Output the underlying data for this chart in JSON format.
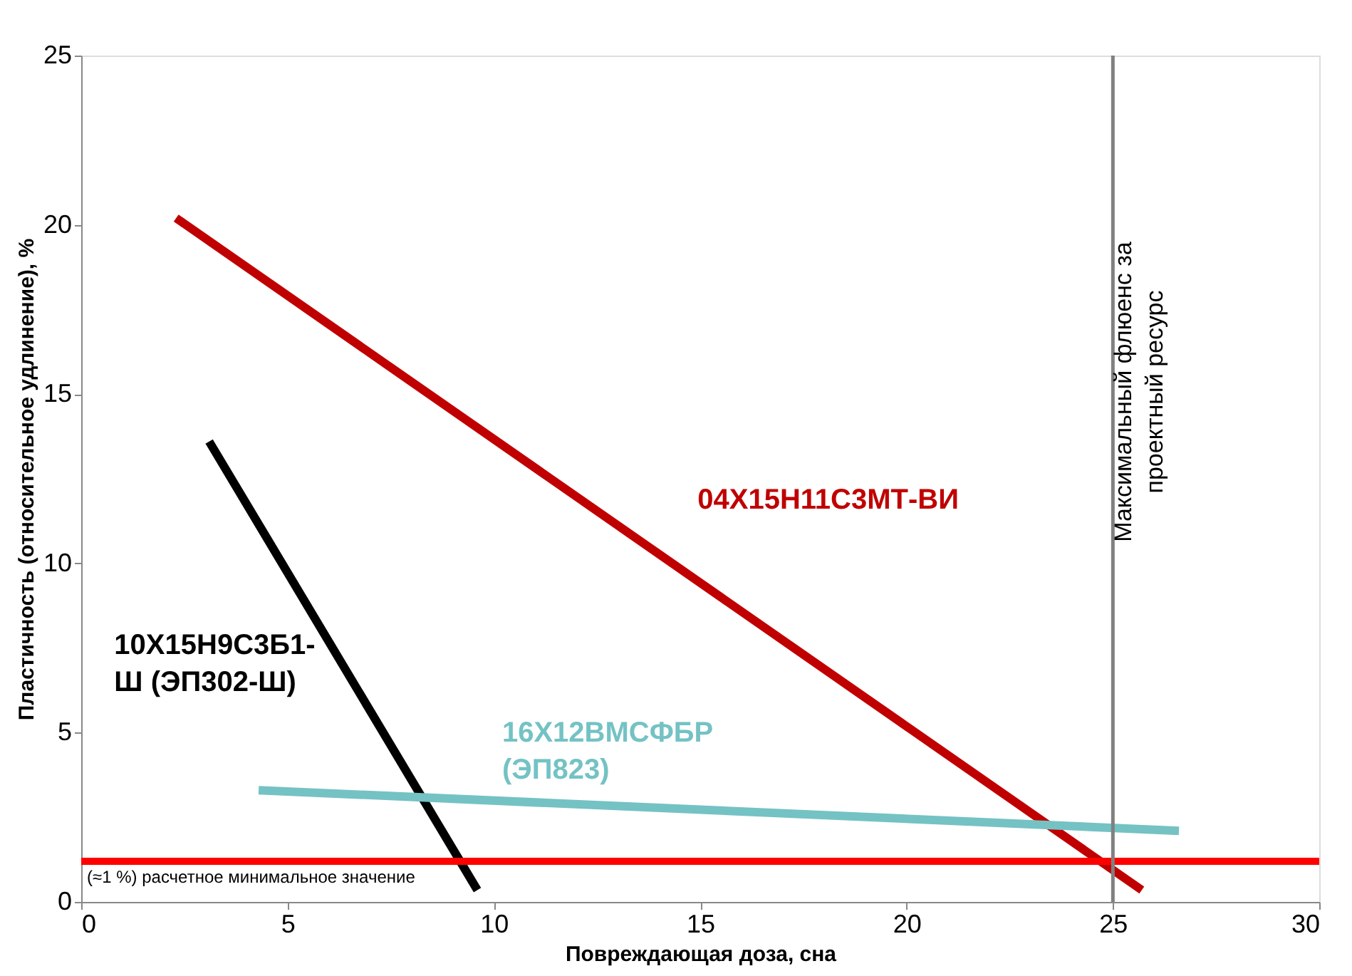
{
  "chart_data": {
    "type": "line",
    "xlabel": "Повреждающая доза, сна",
    "ylabel": "Пластичность (относительное удлинение), %",
    "xlim": [
      0,
      30
    ],
    "ylim": [
      0,
      25
    ],
    "xticks": [
      0,
      5,
      10,
      15,
      20,
      25,
      30
    ],
    "yticks": [
      0,
      5,
      10,
      15,
      20,
      25
    ],
    "grid": false,
    "legend": false,
    "marker": "none",
    "line_style": "solid",
    "series": [
      {
        "name": "04Х15Н11С3МТ-ВИ",
        "color": "#c00000",
        "x": [
          2.3,
          25.7
        ],
        "values": [
          20.2,
          0.35
        ]
      },
      {
        "name": "10Х15Н9С3Б1-\nШ (ЭП302-Ш)",
        "color": "#000000",
        "x": [
          3.1,
          9.6
        ],
        "values": [
          13.6,
          0.35
        ]
      },
      {
        "name": "16Х12ВМСФБР\n(ЭП823)",
        "color": "#74c2c4",
        "x": [
          4.3,
          26.6
        ],
        "values": [
          3.3,
          2.1
        ]
      }
    ],
    "ref_lines": [
      {
        "axis": "y",
        "value": 1.2,
        "label": "(≈1 %) расчетное минимальное значение",
        "color": "#ff0000"
      },
      {
        "axis": "x",
        "value": 25,
        "label": "Максимальный флюенс за\nпроектный ресурс",
        "color": "#808080"
      }
    ]
  }
}
